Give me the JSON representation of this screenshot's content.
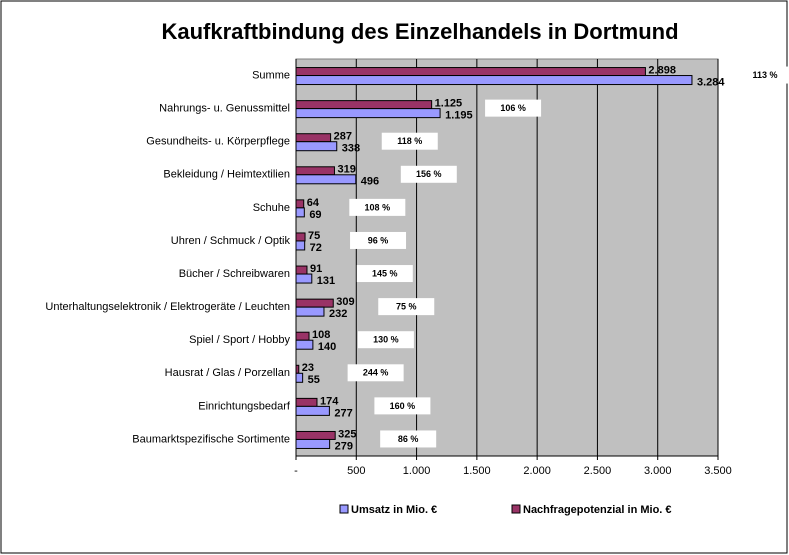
{
  "chart_data": {
    "type": "bar",
    "orientation": "horizontal",
    "title": "Kaufkraftbindung des Einzelhandels in Dortmund",
    "categories": [
      "Summe",
      "Nahrungs- u. Genussmittel",
      "Gesundheits- u. Körperpflege",
      "Bekleidung / Heimtextilien",
      "Schuhe",
      "Uhren / Schmuck / Optik",
      "Bücher / Schreibwaren",
      "Unterhaltungselektronik / Elektrogeräte / Leuchten",
      "Spiel / Sport / Hobby",
      "Hausrat / Glas / Porzellan",
      "Einrichtungsbedarf",
      "Baumarktspezifische Sortimente"
    ],
    "series": [
      {
        "name": "Umsatz in Mio. €",
        "color": "#9999ff",
        "values": [
          3284,
          1195,
          338,
          496,
          69,
          72,
          131,
          232,
          140,
          55,
          277,
          279
        ],
        "value_labels": [
          "3.284",
          "1.195",
          "338",
          "496",
          "69",
          "72",
          "131",
          "232",
          "140",
          "55",
          "277",
          "279"
        ]
      },
      {
        "name": "Nachfragepotenzial in Mio. €",
        "color": "#993366",
        "values": [
          2898,
          1125,
          287,
          319,
          64,
          75,
          91,
          309,
          108,
          23,
          174,
          325
        ],
        "value_labels": [
          "2.898",
          "1.125",
          "287",
          "319",
          "64",
          "75",
          "91",
          "309",
          "108",
          "23",
          "174",
          "325"
        ]
      }
    ],
    "annotations": [
      "113 %",
      "106 %",
      "118 %",
      "156 %",
      "108 %",
      "96 %",
      "145 %",
      "75 %",
      "130 %",
      "244 %",
      "160 %",
      "86 %"
    ],
    "xlim": [
      0,
      3500
    ],
    "xticks": [
      {
        "value": 0,
        "label": "-"
      },
      500,
      {
        "value": 1000,
        "label": "1.000"
      },
      {
        "value": 1500,
        "label": "1.500"
      },
      {
        "value": 2000,
        "label": "2.000"
      },
      {
        "value": 2500,
        "label": "2.500"
      },
      {
        "value": 3000,
        "label": "3.000"
      },
      {
        "value": 3500,
        "label": "3.500"
      }
    ],
    "grid": true,
    "legend": "bottom"
  }
}
